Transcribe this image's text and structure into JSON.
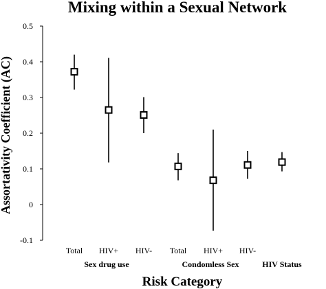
{
  "chart_data": {
    "type": "scatter",
    "title": "Mixing within a Sexual Network",
    "ylabel": "Assortativity Coefficient (AC)",
    "xlabel": "Risk Category",
    "ylim": [
      -0.1,
      0.5
    ],
    "yticks": [
      -0.1,
      0,
      0.1,
      0.2,
      0.3,
      0.4,
      0.5
    ],
    "ytick_labels": [
      "-0.1",
      "0",
      "0.1",
      "0.2",
      "0.3",
      "0.4",
      "0.5"
    ],
    "grid": false,
    "error_bars": true,
    "marker": "hollow-square",
    "colors": {
      "marker": "#000000",
      "axis": "#000000",
      "background": "#ffffff"
    },
    "categories": [
      "Total",
      "HIV+",
      "HIV-",
      "Total",
      "HIV+",
      "HIV-",
      ""
    ],
    "groups": [
      {
        "label": "Sex drug use",
        "categories": [
          0,
          1,
          2
        ]
      },
      {
        "label": "Condomless Sex",
        "categories": [
          3,
          4,
          5
        ]
      },
      {
        "label": "HIV Status",
        "categories": [
          6
        ]
      }
    ],
    "points": [
      {
        "category": "Total",
        "group": "Sex drug use",
        "value": 0.372,
        "lower": 0.322,
        "upper": 0.42
      },
      {
        "category": "HIV+",
        "group": "Sex drug use",
        "value": 0.265,
        "lower": 0.118,
        "upper": 0.411
      },
      {
        "category": "HIV-",
        "group": "Sex drug use",
        "value": 0.251,
        "lower": 0.2,
        "upper": 0.301
      },
      {
        "category": "Total",
        "group": "Condomless Sex",
        "value": 0.107,
        "lower": 0.068,
        "upper": 0.144
      },
      {
        "category": "HIV+",
        "group": "Condomless Sex",
        "value": 0.068,
        "lower": -0.073,
        "upper": 0.21
      },
      {
        "category": "HIV-",
        "group": "Condomless Sex",
        "value": 0.111,
        "lower": 0.072,
        "upper": 0.15
      },
      {
        "category": "",
        "group": "HIV Status",
        "value": 0.119,
        "lower": 0.093,
        "upper": 0.147
      }
    ]
  }
}
